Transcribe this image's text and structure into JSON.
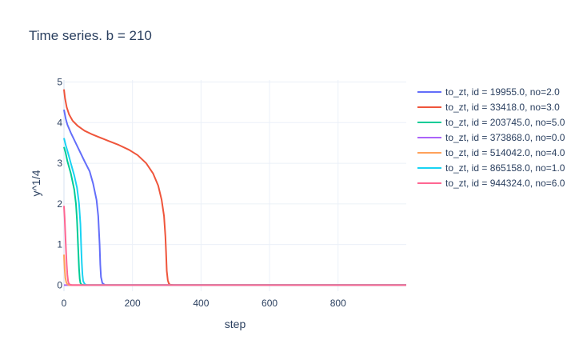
{
  "chart_data": {
    "type": "line",
    "title": "Time series.  b = 210",
    "xlabel": "step",
    "ylabel": "y^1/4",
    "xlim": [
      0,
      999
    ],
    "ylim": [
      -0.15,
      5.05
    ],
    "xticks": [
      0,
      200,
      400,
      600,
      800
    ],
    "yticks": [
      0,
      1,
      2,
      3,
      4,
      5
    ],
    "grid": true,
    "legend_position": "top-right outside",
    "series": [
      {
        "name": "to_zt, id = 19955.0, no=2.0",
        "color": "#636efa",
        "x": [
          0,
          5,
          10,
          20,
          40,
          60,
          75,
          85,
          95,
          100,
          104,
          106,
          108,
          112,
          120,
          999
        ],
        "y": [
          4.32,
          4.1,
          3.95,
          3.75,
          3.4,
          3.05,
          2.8,
          2.5,
          2.1,
          1.7,
          1.0,
          0.5,
          0.2,
          0.05,
          0.0,
          0.0
        ]
      },
      {
        "name": "to_zt, id = 33418.0, no=3.0",
        "color": "#ef553b",
        "x": [
          0,
          3,
          8,
          15,
          25,
          40,
          60,
          80,
          100,
          130,
          160,
          190,
          215,
          240,
          260,
          275,
          285,
          292,
          296,
          298,
          300,
          303,
          306,
          310,
          320,
          999
        ],
        "y": [
          4.82,
          4.6,
          4.38,
          4.2,
          4.05,
          3.92,
          3.8,
          3.72,
          3.65,
          3.55,
          3.45,
          3.33,
          3.2,
          3.0,
          2.75,
          2.45,
          2.1,
          1.7,
          1.2,
          0.8,
          0.35,
          0.12,
          0.04,
          0.01,
          0.0,
          0.0
        ]
      },
      {
        "name": "to_zt, id = 203745.0, no=5.0",
        "color": "#00cc96",
        "x": [
          0,
          5,
          10,
          20,
          30,
          35,
          38,
          40,
          42,
          44,
          46,
          48,
          52,
          60,
          999
        ],
        "y": [
          3.4,
          3.25,
          3.05,
          2.75,
          2.35,
          2.0,
          1.6,
          1.2,
          0.8,
          0.4,
          0.15,
          0.05,
          0.01,
          0.0,
          0.0
        ]
      },
      {
        "name": "to_zt, id = 373868.0, no=0.0",
        "color": "#ab63fa",
        "x": [
          0,
          999
        ],
        "y": [
          0.0,
          0.0
        ]
      },
      {
        "name": "to_zt, id = 514042.0, no=4.0",
        "color": "#ffa15a",
        "x": [
          0,
          2,
          4,
          7,
          10,
          15,
          999
        ],
        "y": [
          0.75,
          0.4,
          0.18,
          0.06,
          0.02,
          0.0,
          0.0
        ]
      },
      {
        "name": "to_zt, id = 865158.0, no=1.0",
        "color": "#19d3f3",
        "x": [
          0,
          5,
          12,
          20,
          30,
          38,
          44,
          48,
          50,
          52,
          54,
          56,
          60,
          66,
          999
        ],
        "y": [
          3.62,
          3.45,
          3.25,
          3.0,
          2.7,
          2.4,
          2.0,
          1.5,
          1.0,
          0.55,
          0.25,
          0.1,
          0.03,
          0.0,
          0.0
        ]
      },
      {
        "name": "to_zt, id = 944324.0, no=6.0",
        "color": "#ff6692",
        "x": [
          0,
          2,
          4,
          6,
          8,
          10,
          12,
          14,
          18,
          24,
          999
        ],
        "y": [
          1.95,
          1.65,
          1.25,
          0.85,
          0.5,
          0.25,
          0.1,
          0.04,
          0.01,
          0.0,
          0.0
        ]
      }
    ]
  }
}
